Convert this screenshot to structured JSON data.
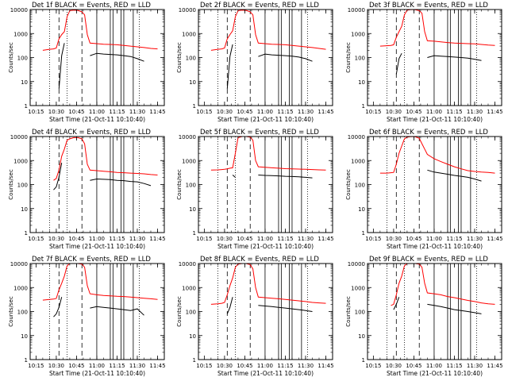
{
  "figure": {
    "ylabel": "Counts/sec",
    "xlabel": "Start Time (21-Oct-11 10:10:40)",
    "x_tick_labels": [
      "10:15",
      "10:30",
      "10:45",
      "11:00",
      "11:15",
      "11:30",
      "11:45"
    ],
    "y_tick_labels": [
      "1",
      "10",
      "100",
      "1000",
      "10000"
    ],
    "colors": {
      "events": "#000000",
      "lld": "#ff0000",
      "axes": "#000000",
      "background": "#ffffff"
    }
  },
  "chart_data": [
    {
      "type": "line",
      "title": "Det 1f BLACK = Events, RED = LLD",
      "xlabel": "Start Time (21-Oct-11 10:10:40)",
      "ylabel": "Counts/sec",
      "yscale": "log",
      "ylim": [
        1,
        10000
      ],
      "xlim": [
        "10:10:40",
        "11:50:00"
      ],
      "x": [
        "10:15",
        "10:20",
        "10:25",
        "10:28",
        "10:30",
        "10:32",
        "10:34",
        "10:36",
        "10:38",
        "10:40",
        "10:43",
        "10:46",
        "10:49",
        "10:51",
        "10:53",
        "10:55",
        "11:00",
        "11:05",
        "11:10",
        "11:15",
        "11:20",
        "11:25",
        "11:30",
        "11:35",
        "11:40",
        "11:45"
      ],
      "series": [
        {
          "name": "RED = LLD",
          "values": [
            null,
            200,
            220,
            230,
            250,
            600,
            900,
            1200,
            5000,
            9000,
            9500,
            9200,
            8000,
            6000,
            900,
            400,
            380,
            360,
            350,
            340,
            320,
            300,
            280,
            260,
            240,
            230
          ]
        },
        {
          "name": "BLACK = Events",
          "values": [
            null,
            null,
            null,
            null,
            null,
            5,
            120,
            400,
            null,
            null,
            null,
            null,
            null,
            null,
            null,
            120,
            150,
            140,
            135,
            130,
            120,
            110,
            90,
            70,
            null,
            null
          ]
        }
      ]
    },
    {
      "type": "line",
      "title": "Det 2f BLACK = Events, RED = LLD",
      "xlabel": "Start Time (21-Oct-11 10:10:40)",
      "ylabel": "Counts/sec",
      "yscale": "log",
      "ylim": [
        1,
        10000
      ],
      "xlim": [
        "10:10:40",
        "11:50:00"
      ],
      "x": [
        "10:15",
        "10:20",
        "10:25",
        "10:28",
        "10:30",
        "10:32",
        "10:34",
        "10:36",
        "10:38",
        "10:40",
        "10:43",
        "10:46",
        "10:49",
        "10:51",
        "10:53",
        "10:55",
        "11:00",
        "11:05",
        "11:10",
        "11:15",
        "11:20",
        "11:25",
        "11:30",
        "11:35",
        "11:40",
        "11:45"
      ],
      "series": [
        {
          "name": "RED = LLD",
          "values": [
            null,
            200,
            220,
            230,
            250,
            600,
            900,
            1300,
            5000,
            9000,
            9500,
            9200,
            8000,
            6000,
            900,
            400,
            380,
            360,
            350,
            340,
            320,
            300,
            280,
            260,
            240,
            220
          ]
        },
        {
          "name": "BLACK = Events",
          "values": [
            null,
            null,
            null,
            null,
            null,
            5,
            110,
            350,
            null,
            null,
            null,
            null,
            null,
            null,
            null,
            110,
            140,
            130,
            125,
            120,
            115,
            105,
            90,
            70,
            null,
            null
          ]
        }
      ]
    },
    {
      "type": "line",
      "title": "Det 3f BLACK = Events, RED = LLD",
      "xlabel": "Start Time (21-Oct-11 10:10:40)",
      "ylabel": "Counts/sec",
      "yscale": "log",
      "ylim": [
        1,
        10000
      ],
      "xlim": [
        "10:10:40",
        "11:50:00"
      ],
      "x": [
        "10:15",
        "10:20",
        "10:25",
        "10:28",
        "10:30",
        "10:32",
        "10:34",
        "10:36",
        "10:38",
        "10:40",
        "10:43",
        "10:46",
        "10:49",
        "10:51",
        "10:53",
        "10:55",
        "11:00",
        "11:05",
        "11:10",
        "11:15",
        "11:20",
        "11:25",
        "11:30",
        "11:35",
        "11:40",
        "11:45"
      ],
      "series": [
        {
          "name": "RED = LLD",
          "values": [
            null,
            300,
            310,
            320,
            340,
            700,
            1200,
            2000,
            6000,
            9500,
            10000,
            9800,
            9000,
            7000,
            1200,
            500,
            480,
            450,
            420,
            400,
            390,
            380,
            370,
            350,
            330,
            320
          ]
        },
        {
          "name": "BLACK = Events",
          "values": [
            null,
            null,
            null,
            null,
            null,
            20,
            90,
            150,
            null,
            null,
            null,
            null,
            null,
            null,
            null,
            100,
            120,
            115,
            110,
            105,
            100,
            95,
            85,
            75,
            null,
            null
          ]
        }
      ]
    },
    {
      "type": "line",
      "title": "Det 4f BLACK = Events, RED = LLD",
      "xlabel": "Start Time (21-Oct-11 10:10:40)",
      "ylabel": "Counts/sec",
      "yscale": "log",
      "ylim": [
        1,
        10000
      ],
      "xlim": [
        "10:10:40",
        "11:50:00"
      ],
      "x": [
        "10:15",
        "10:20",
        "10:25",
        "10:28",
        "10:30",
        "10:32",
        "10:34",
        "10:36",
        "10:38",
        "10:40",
        "10:43",
        "10:46",
        "10:49",
        "10:51",
        "10:53",
        "10:55",
        "11:00",
        "11:05",
        "11:10",
        "11:15",
        "11:20",
        "11:25",
        "11:30",
        "11:35",
        "11:40",
        "11:45"
      ],
      "series": [
        {
          "name": "RED = LLD",
          "values": [
            null,
            null,
            null,
            150,
            180,
            400,
            1500,
            3000,
            7000,
            8000,
            9000,
            9000,
            8000,
            5000,
            700,
            400,
            380,
            360,
            340,
            320,
            310,
            300,
            290,
            280,
            260,
            250
          ]
        },
        {
          "name": "BLACK = Events",
          "values": [
            null,
            null,
            null,
            60,
            80,
            200,
            800,
            null,
            null,
            null,
            null,
            null,
            null,
            null,
            null,
            150,
            170,
            165,
            160,
            150,
            145,
            135,
            130,
            110,
            90,
            null
          ]
        }
      ]
    },
    {
      "type": "line",
      "title": "Det 5f BLACK = Events, RED = LLD",
      "xlabel": "Start Time (21-Oct-11 10:10:40)",
      "ylabel": "Counts/sec",
      "yscale": "log",
      "ylim": [
        1,
        10000
      ],
      "xlim": [
        "10:10:40",
        "11:50:00"
      ],
      "x": [
        "10:15",
        "10:20",
        "10:25",
        "10:28",
        "10:30",
        "10:32",
        "10:34",
        "10:36",
        "10:38",
        "10:40",
        "10:43",
        "10:46",
        "10:49",
        "10:51",
        "10:53",
        "10:55",
        "11:00",
        "11:05",
        "11:10",
        "11:15",
        "11:20",
        "11:25",
        "11:30",
        "11:35",
        "11:40",
        "11:45"
      ],
      "series": [
        {
          "name": "RED = LLD",
          "values": [
            null,
            400,
            410,
            420,
            430,
            450,
            480,
            500,
            2000,
            9000,
            10000,
            10000,
            9500,
            7000,
            1000,
            550,
            520,
            500,
            480,
            460,
            450,
            440,
            430,
            420,
            410,
            400
          ]
        },
        {
          "name": "BLACK = Events",
          "values": [
            null,
            null,
            null,
            null,
            null,
            null,
            null,
            250,
            200,
            null,
            null,
            null,
            null,
            null,
            null,
            250,
            240,
            235,
            230,
            220,
            215,
            210,
            200,
            190,
            null,
            null
          ]
        }
      ]
    },
    {
      "type": "line",
      "title": "Det 6f BLACK = Events, RED = LLD",
      "xlabel": "Start Time (21-Oct-11 10:10:40)",
      "ylabel": "Counts/sec",
      "yscale": "log",
      "ylim": [
        1,
        10000
      ],
      "xlim": [
        "10:10:40",
        "11:50:00"
      ],
      "x": [
        "10:15",
        "10:20",
        "10:25",
        "10:28",
        "10:30",
        "10:32",
        "10:34",
        "10:36",
        "10:38",
        "10:40",
        "10:43",
        "10:46",
        "10:49",
        "10:51",
        "10:53",
        "10:55",
        "11:00",
        "11:05",
        "11:10",
        "11:15",
        "11:20",
        "11:25",
        "11:30",
        "11:35",
        "11:40",
        "11:45"
      ],
      "series": [
        {
          "name": "RED = LLD",
          "values": [
            null,
            300,
            300,
            310,
            320,
            700,
            2000,
            4000,
            8000,
            9500,
            10000,
            9800,
            8500,
            5000,
            3000,
            1800,
            1200,
            900,
            700,
            550,
            450,
            380,
            350,
            330,
            320,
            300
          ]
        },
        {
          "name": "BLACK = Events",
          "values": [
            null,
            null,
            null,
            null,
            null,
            300,
            null,
            null,
            null,
            null,
            null,
            null,
            null,
            null,
            null,
            400,
            330,
            300,
            270,
            240,
            220,
            200,
            170,
            140,
            null,
            null
          ]
        }
      ]
    },
    {
      "type": "line",
      "title": "Det 7f BLACK = Events, RED = LLD",
      "xlabel": "Start Time (21-Oct-11 10:10:40)",
      "ylabel": "Counts/sec",
      "yscale": "log",
      "ylim": [
        1,
        10000
      ],
      "xlim": [
        "10:10:40",
        "11:50:00"
      ],
      "x": [
        "10:15",
        "10:20",
        "10:25",
        "10:28",
        "10:30",
        "10:32",
        "10:34",
        "10:36",
        "10:38",
        "10:40",
        "10:43",
        "10:46",
        "10:49",
        "10:51",
        "10:53",
        "10:55",
        "11:00",
        "11:05",
        "11:10",
        "11:15",
        "11:20",
        "11:25",
        "11:30",
        "11:35",
        "11:40",
        "11:45"
      ],
      "series": [
        {
          "name": "RED = LLD",
          "values": [
            null,
            300,
            320,
            330,
            350,
            800,
            1500,
            3000,
            8000,
            10000,
            10000,
            10000,
            9500,
            7000,
            1200,
            550,
            500,
            470,
            450,
            430,
            420,
            400,
            380,
            360,
            340,
            320
          ]
        },
        {
          "name": "BLACK = Events",
          "values": [
            null,
            null,
            null,
            60,
            80,
            150,
            400,
            null,
            null,
            null,
            null,
            null,
            null,
            null,
            null,
            140,
            160,
            150,
            140,
            130,
            120,
            110,
            130,
            70,
            null,
            null
          ]
        }
      ]
    },
    {
      "type": "line",
      "title": "Det 8f BLACK = Events, RED = LLD",
      "xlabel": "Start Time (21-Oct-11 10:10:40)",
      "ylabel": "Counts/sec",
      "yscale": "log",
      "ylim": [
        1,
        10000
      ],
      "xlim": [
        "10:10:40",
        "11:50:00"
      ],
      "x": [
        "10:15",
        "10:20",
        "10:25",
        "10:28",
        "10:30",
        "10:32",
        "10:34",
        "10:36",
        "10:38",
        "10:40",
        "10:43",
        "10:46",
        "10:49",
        "10:51",
        "10:53",
        "10:55",
        "11:00",
        "11:05",
        "11:10",
        "11:15",
        "11:20",
        "11:25",
        "11:30",
        "11:35",
        "11:40",
        "11:45"
      ],
      "series": [
        {
          "name": "RED = LLD",
          "values": [
            null,
            200,
            210,
            220,
            240,
            500,
            1200,
            2500,
            7000,
            9500,
            10000,
            10000,
            9000,
            6000,
            1000,
            400,
            380,
            360,
            340,
            320,
            300,
            280,
            260,
            240,
            230,
            220
          ]
        },
        {
          "name": "BLACK = Events",
          "values": [
            null,
            null,
            null,
            null,
            null,
            80,
            150,
            400,
            null,
            null,
            null,
            null,
            null,
            null,
            null,
            180,
            170,
            160,
            150,
            140,
            130,
            120,
            110,
            100,
            null,
            null
          ]
        }
      ]
    },
    {
      "type": "line",
      "title": "Det 9f BLACK = Events, RED = LLD",
      "xlabel": "Start Time (21-Oct-11 10:10:40)",
      "ylabel": "Counts/sec",
      "yscale": "log",
      "ylim": [
        1,
        10000
      ],
      "xlim": [
        "10:10:40",
        "11:50:00"
      ],
      "x": [
        "10:15",
        "10:20",
        "10:25",
        "10:28",
        "10:30",
        "10:32",
        "10:34",
        "10:36",
        "10:38",
        "10:40",
        "10:43",
        "10:46",
        "10:49",
        "10:51",
        "10:53",
        "10:55",
        "11:00",
        "11:05",
        "11:10",
        "11:15",
        "11:20",
        "11:25",
        "11:30",
        "11:35",
        "11:40",
        "11:45"
      ],
      "series": [
        {
          "name": "RED = LLD",
          "values": [
            null,
            null,
            null,
            180,
            200,
            500,
            1500,
            3000,
            8000,
            10000,
            10000,
            10000,
            9500,
            7000,
            1500,
            600,
            550,
            500,
            420,
            380,
            330,
            290,
            260,
            230,
            210,
            200
          ]
        },
        {
          "name": "BLACK = Events",
          "values": [
            null,
            null,
            null,
            null,
            120,
            200,
            400,
            null,
            null,
            null,
            null,
            null,
            null,
            null,
            null,
            200,
            180,
            160,
            140,
            120,
            110,
            100,
            90,
            80,
            null,
            null
          ]
        }
      ]
    }
  ]
}
